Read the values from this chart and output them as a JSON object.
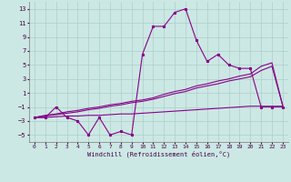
{
  "xlabel": "Windchill (Refroidissement éolien,°C)",
  "x_ticks": [
    0,
    1,
    2,
    3,
    4,
    5,
    6,
    7,
    8,
    9,
    10,
    11,
    12,
    13,
    14,
    15,
    16,
    17,
    18,
    19,
    20,
    21,
    22,
    23
  ],
  "ylim": [
    -6,
    14
  ],
  "xlim": [
    -0.5,
    23.5
  ],
  "yticks": [
    -5,
    -3,
    -1,
    1,
    3,
    5,
    7,
    9,
    11,
    13
  ],
  "bg_color": "#cce8e4",
  "line_color": "#880088",
  "grid_color": "#aacfca",
  "series1_x": [
    0,
    1,
    2,
    3,
    4,
    5,
    6,
    7,
    8,
    9,
    10,
    11,
    12,
    13,
    14,
    15,
    16,
    17,
    18,
    19,
    20,
    21,
    22,
    23
  ],
  "series1_y": [
    -2.5,
    -2.5,
    -1.0,
    -2.5,
    -3.0,
    -5.0,
    -2.5,
    -5.0,
    -4.5,
    -5.0,
    6.5,
    10.5,
    10.5,
    12.5,
    13.0,
    8.5,
    5.5,
    6.5,
    5.0,
    4.5,
    4.5,
    -1.0,
    -1.0,
    -1.0
  ],
  "series2_x": [
    0,
    1,
    2,
    3,
    4,
    5,
    6,
    7,
    8,
    9,
    10,
    11,
    12,
    13,
    14,
    15,
    16,
    17,
    18,
    19,
    20,
    21,
    22,
    23
  ],
  "series2_y": [
    -2.5,
    -2.2,
    -2.0,
    -1.7,
    -1.5,
    -1.2,
    -1.0,
    -0.7,
    -0.5,
    -0.2,
    0.0,
    0.3,
    0.8,
    1.2,
    1.5,
    2.0,
    2.3,
    2.7,
    3.0,
    3.4,
    3.7,
    4.8,
    5.3,
    -0.8
  ],
  "series3_x": [
    0,
    1,
    2,
    3,
    4,
    5,
    6,
    7,
    8,
    9,
    10,
    11,
    12,
    13,
    14,
    15,
    16,
    17,
    18,
    19,
    20,
    21,
    22,
    23
  ],
  "series3_y": [
    -2.5,
    -2.3,
    -2.1,
    -1.9,
    -1.7,
    -1.4,
    -1.2,
    -0.9,
    -0.7,
    -0.4,
    -0.2,
    0.1,
    0.5,
    0.9,
    1.2,
    1.7,
    2.0,
    2.3,
    2.7,
    3.0,
    3.3,
    4.2,
    4.8,
    -0.8
  ],
  "series4_x": [
    0,
    1,
    2,
    3,
    4,
    5,
    6,
    7,
    8,
    9,
    10,
    11,
    12,
    13,
    14,
    15,
    16,
    17,
    18,
    19,
    20,
    21,
    22,
    23
  ],
  "series4_y": [
    -2.5,
    -2.5,
    -2.4,
    -2.3,
    -2.3,
    -2.2,
    -2.2,
    -2.1,
    -2.0,
    -2.0,
    -1.9,
    -1.8,
    -1.7,
    -1.6,
    -1.5,
    -1.4,
    -1.3,
    -1.2,
    -1.1,
    -1.0,
    -0.9,
    -0.9,
    -0.9,
    -0.9
  ]
}
